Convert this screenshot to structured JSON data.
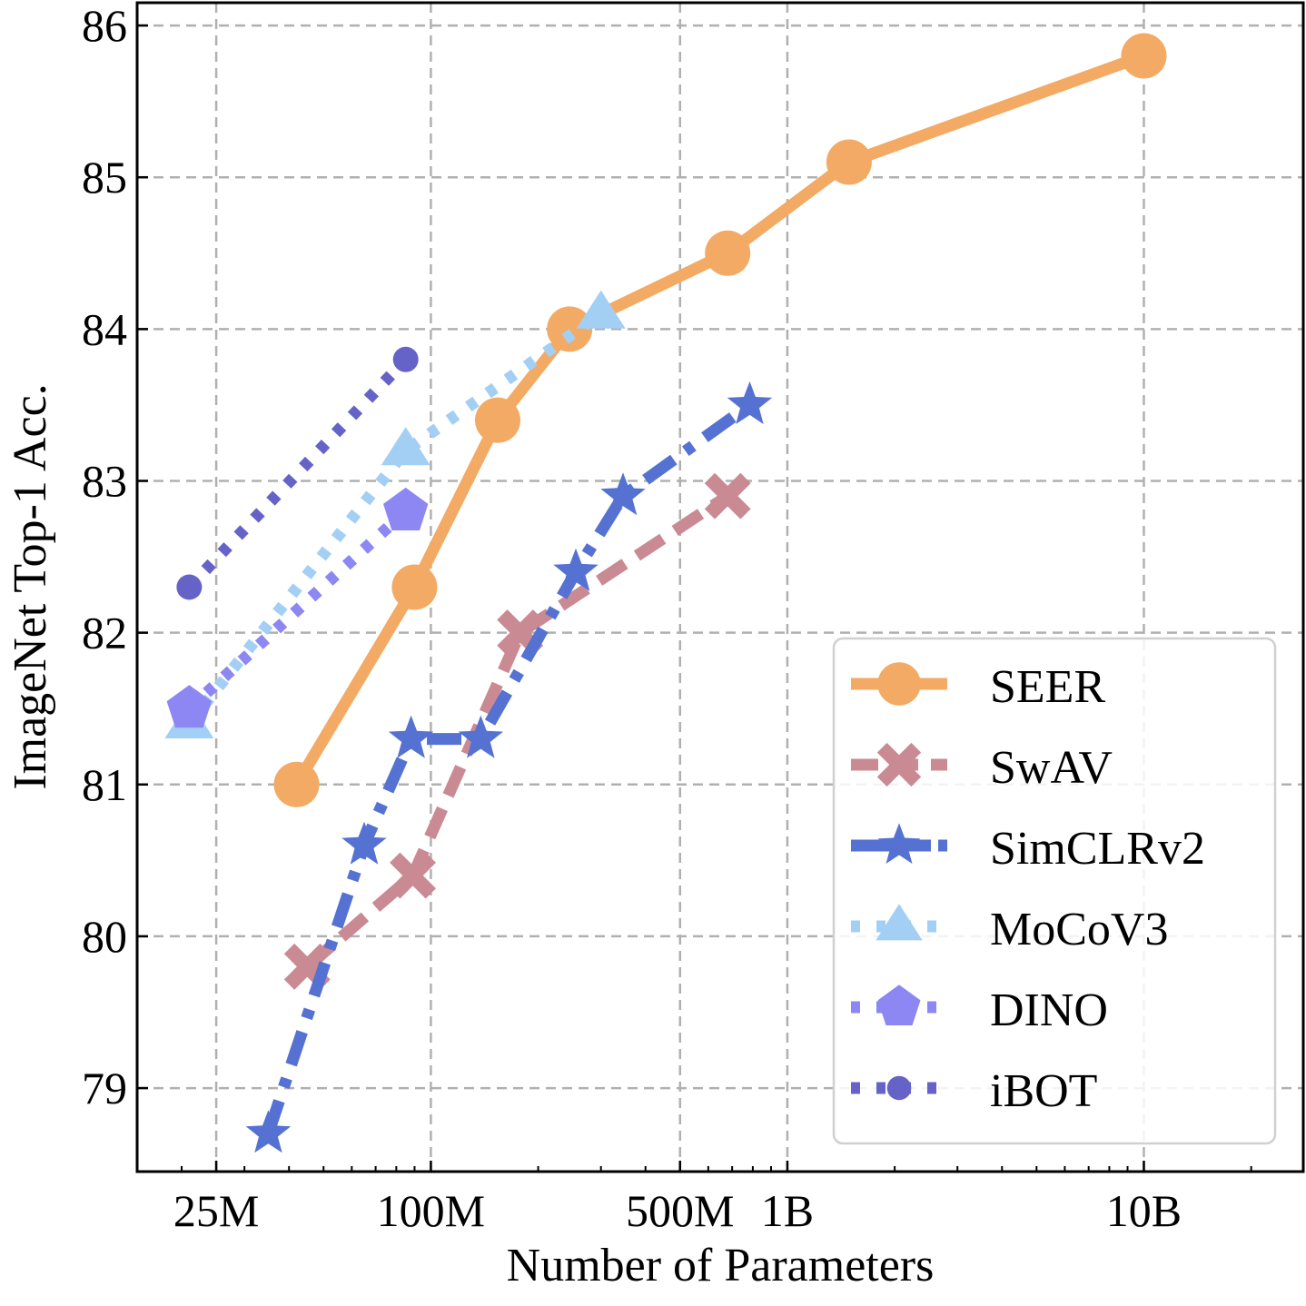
{
  "chart_data": {
    "type": "line",
    "title": "",
    "xlabel": "Number of Parameters",
    "ylabel": "ImageNet Top-1 Acc.",
    "xscale": "log",
    "xlim": [
      15000000,
      28000000000
    ],
    "ylim": [
      78.45,
      86.15
    ],
    "grid": true,
    "legend_position": "bottom-right",
    "x_ticks": [
      {
        "value": 25000000,
        "label": "25M"
      },
      {
        "value": 100000000,
        "label": "100M"
      },
      {
        "value": 500000000,
        "label": "500M"
      },
      {
        "value": 1000000000,
        "label": "1B"
      },
      {
        "value": 10000000000,
        "label": "10B"
      }
    ],
    "y_ticks": [
      {
        "value": 79,
        "label": "79"
      },
      {
        "value": 80,
        "label": "80"
      },
      {
        "value": 81,
        "label": "81"
      },
      {
        "value": 82,
        "label": "82"
      },
      {
        "value": 83,
        "label": "83"
      },
      {
        "value": 84,
        "label": "84"
      },
      {
        "value": 85,
        "label": "85"
      },
      {
        "value": 86,
        "label": "86"
      }
    ],
    "series": [
      {
        "name": "SEER",
        "color": "#F2AA64",
        "marker": "circle",
        "linestyle": "solid",
        "points": [
          {
            "x": 42000000,
            "y": 81.0
          },
          {
            "x": 90000000,
            "y": 82.3
          },
          {
            "x": 154000000,
            "y": 83.4
          },
          {
            "x": 245000000,
            "y": 84.0
          },
          {
            "x": 680000000,
            "y": 84.5
          },
          {
            "x": 1490000000,
            "y": 85.1
          },
          {
            "x": 10000000000,
            "y": 85.8
          }
        ]
      },
      {
        "name": "SwAV",
        "color": "#C98A93",
        "marker": "x",
        "linestyle": "dashed",
        "points": [
          {
            "x": 45000000,
            "y": 79.8
          },
          {
            "x": 89000000,
            "y": 80.4
          },
          {
            "x": 178000000,
            "y": 82.0
          },
          {
            "x": 680000000,
            "y": 82.9
          }
        ]
      },
      {
        "name": "SimCLRv2",
        "color": "#5572D2",
        "marker": "star",
        "linestyle": "dashdot",
        "points": [
          {
            "x": 35000000,
            "y": 78.7
          },
          {
            "x": 65000000,
            "y": 80.6
          },
          {
            "x": 88000000,
            "y": 81.3
          },
          {
            "x": 138000000,
            "y": 81.3
          },
          {
            "x": 255000000,
            "y": 82.4
          },
          {
            "x": 346000000,
            "y": 82.9
          },
          {
            "x": 784000000,
            "y": 83.5
          }
        ]
      },
      {
        "name": "MoCoV3",
        "color": "#A3CFF5",
        "marker": "triangle",
        "linestyle": "dotted",
        "points": [
          {
            "x": 21000000,
            "y": 81.4
          },
          {
            "x": 85000000,
            "y": 83.2
          },
          {
            "x": 300000000,
            "y": 84.1
          }
        ]
      },
      {
        "name": "DINO",
        "color": "#8C87F2",
        "marker": "pentagon",
        "linestyle": "dotted",
        "points": [
          {
            "x": 21000000,
            "y": 81.5
          },
          {
            "x": 85000000,
            "y": 82.8
          }
        ]
      },
      {
        "name": "iBOT",
        "color": "#6663C8",
        "marker": "dot",
        "linestyle": "dotted",
        "points": [
          {
            "x": 21000000,
            "y": 82.3
          },
          {
            "x": 85000000,
            "y": 83.8
          }
        ]
      }
    ]
  }
}
